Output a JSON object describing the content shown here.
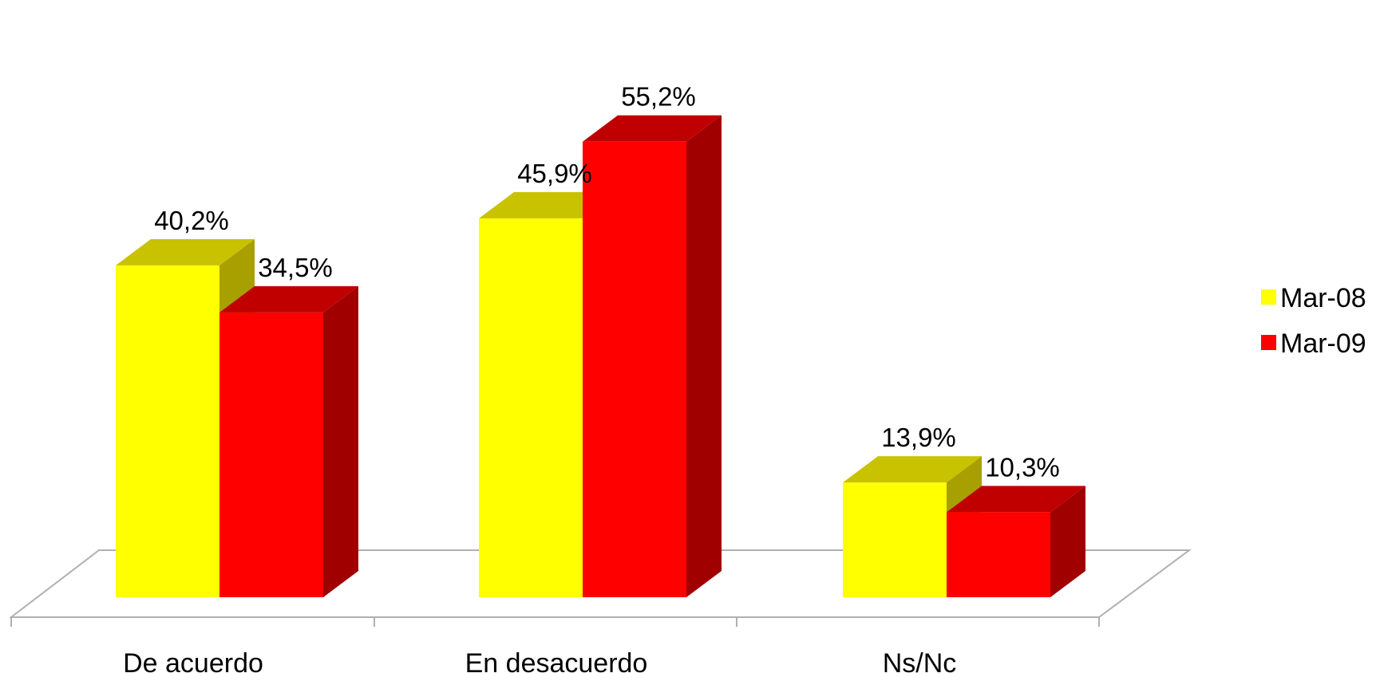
{
  "chart_data": {
    "type": "bar",
    "three_d": true,
    "categories": [
      "De acuerdo",
      "En desacuerdo",
      "Ns/Nc"
    ],
    "series": [
      {
        "name": "Mar-08",
        "values": [
          40.2,
          45.9,
          13.9
        ],
        "labels": [
          "40,2%",
          "45,9%",
          "13,9%"
        ],
        "colors": {
          "front": "#FFFF00",
          "top": "#C8C200",
          "side": "#A8A000"
        }
      },
      {
        "name": "Mar-09",
        "values": [
          34.5,
          55.2,
          10.3
        ],
        "labels": [
          "34,5%",
          "55,2%",
          "10,3%"
        ],
        "colors": {
          "front": "#FF0000",
          "top": "#C00000",
          "side": "#A00000"
        }
      }
    ],
    "unit": "%",
    "legend_position": "right",
    "grid": false,
    "floor_color": "#B0B0B0"
  }
}
